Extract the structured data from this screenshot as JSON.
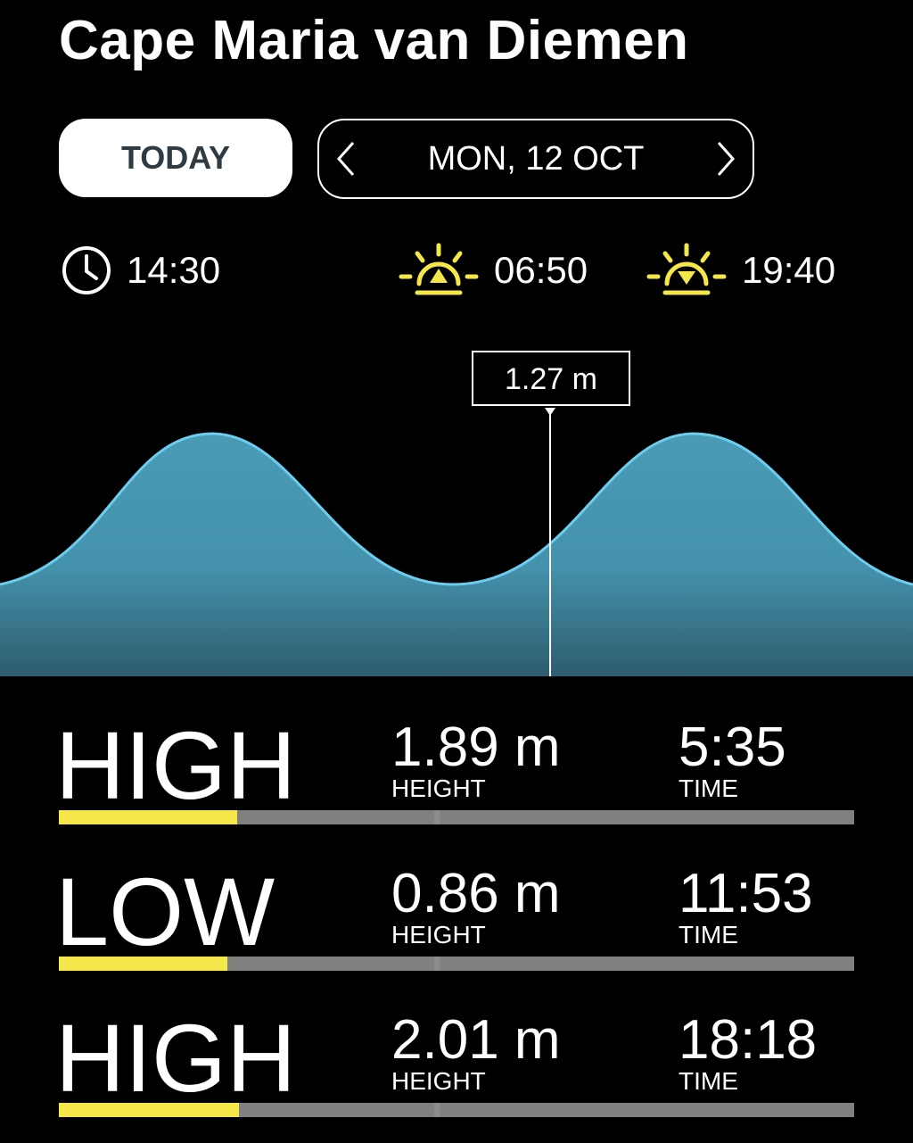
{
  "header": {
    "title": "Cape Maria van Diemen"
  },
  "nav": {
    "today_label": "TODAY",
    "date_label": "MON, 12 OCT"
  },
  "info": {
    "current_time": "14:30",
    "sunrise": "06:50",
    "sunset": "19:40"
  },
  "chart_marker": {
    "label": "1.27 m"
  },
  "colors": {
    "accent": "#f5e64a",
    "wave_line": "#6dcdee",
    "wave_fill_top": "#4a9bb6",
    "wave_fill_bottom": "#2e5c6e",
    "bar_track": "#808080"
  },
  "tides": [
    {
      "type": "HIGH",
      "height": "1.89 m",
      "height_label": "HEIGHT",
      "time": "5:35",
      "time_label": "TIME",
      "progress": 0.224
    },
    {
      "type": "LOW",
      "height": "0.86 m",
      "height_label": "HEIGHT",
      "time": "11:53",
      "time_label": "TIME",
      "progress": 0.212
    },
    {
      "type": "HIGH",
      "height": "2.01 m",
      "height_label": "HEIGHT",
      "time": "18:18",
      "time_label": "TIME",
      "progress": 0.227
    }
  ]
}
